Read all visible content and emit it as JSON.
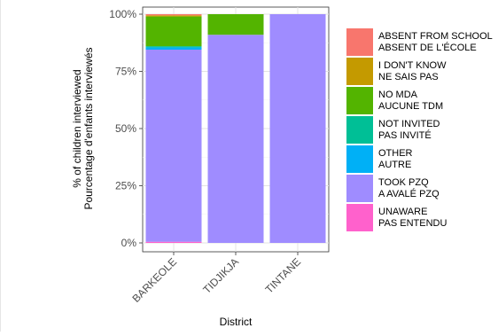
{
  "chart_data": {
    "type": "bar",
    "stacked": true,
    "xlabel": "District",
    "ylabel_lines": [
      "% of children interviewed",
      "Pourcentage d'enfants interviewés"
    ],
    "categories": [
      "BARKEOLE",
      "TIDJIKJA",
      "TINTANE"
    ],
    "y_ticks": [
      "0%",
      "25%",
      "50%",
      "75%",
      "100%"
    ],
    "ylim": [
      0,
      100
    ],
    "series": [
      {
        "key": "unaware",
        "name_lines": [
          "UNAWARE",
          "PAS ENTENDU"
        ],
        "color": "#ff61cc",
        "values": [
          0.5,
          0,
          0
        ]
      },
      {
        "key": "took_pzq",
        "name_lines": [
          "TOOK PZQ",
          "A AVALÉ PZQ"
        ],
        "color": "#9f8cff",
        "values": [
          84,
          91,
          100
        ]
      },
      {
        "key": "other",
        "name_lines": [
          "OTHER",
          "AUTRE"
        ],
        "color": "#00b0f6",
        "values": [
          1,
          0,
          0
        ]
      },
      {
        "key": "not_invited",
        "name_lines": [
          "NOT INVITED",
          "PAS INVITÉ"
        ],
        "color": "#00bf96",
        "values": [
          0.5,
          0,
          0
        ]
      },
      {
        "key": "no_mda",
        "name_lines": [
          "NO MDA",
          "AUCUNE TDM"
        ],
        "color": "#53b400",
        "values": [
          13,
          9,
          0
        ]
      },
      {
        "key": "dont_know",
        "name_lines": [
          "I DON'T KNOW",
          "NE SAIS PAS"
        ],
        "color": "#c49a00",
        "values": [
          0.5,
          0,
          0
        ]
      },
      {
        "key": "absent",
        "name_lines": [
          "ABSENT FROM SCHOOL",
          "ABSENT DE L'ÉCOLE"
        ],
        "color": "#f8766d",
        "values": [
          0.5,
          0,
          0
        ]
      }
    ],
    "legend_order": [
      "absent",
      "dont_know",
      "no_mda",
      "not_invited",
      "other",
      "took_pzq",
      "unaware"
    ],
    "grid": true,
    "legend_position": "right"
  }
}
